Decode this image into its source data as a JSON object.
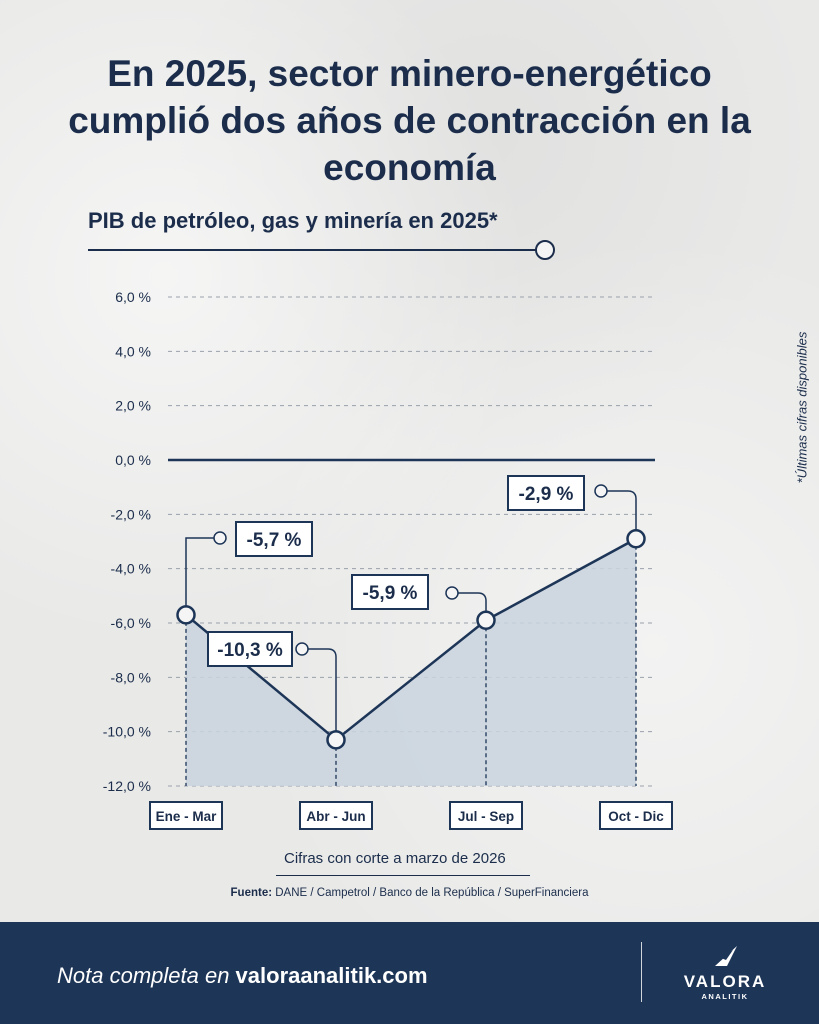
{
  "title": "En 2025, sector minero-energético cumplió dos años de contracción en la economía",
  "subtitle": "PIB de petróleo, gas y minería en 2025*",
  "side_note": "*Últimas cifras disponibles",
  "cutoff_note": "Cifras con corte a marzo de 2026",
  "source": {
    "label": "Fuente:",
    "text": "DANE / Campetrol / Banco de la República / SuperFinanciera"
  },
  "footer": {
    "prefix": "Nota completa en ",
    "url": "valoraanalitik.com"
  },
  "logo": {
    "name": "VALORA",
    "sub": "ANALITIK"
  },
  "colors": {
    "navy": "#1d3557",
    "area": "#c9d3de",
    "text": "#1b2d4b"
  },
  "chart_data": {
    "type": "area",
    "categories": [
      "Ene - Mar",
      "Abr - Jun",
      "Jul - Sep",
      "Oct - Dic"
    ],
    "series": [
      {
        "values": [
          -5.7,
          -10.3,
          -5.9,
          -2.9
        ]
      }
    ],
    "data_labels": [
      "-5,7 %",
      "-10,3 %",
      "-5,9 %",
      "-2,9 %"
    ],
    "ylim": [
      -12,
      6
    ],
    "yticks": [
      6,
      4,
      2,
      0,
      -2,
      -4,
      -6,
      -8,
      -10,
      -12
    ],
    "ytick_labels": [
      "6,0 %",
      "4,0 %",
      "2,0 %",
      "0,0 %",
      "-2,0 %",
      "-4,0 %",
      "-6,0 %",
      "-8,0 %",
      "-10,0 %",
      "-12,0 %"
    ],
    "grid": true
  }
}
